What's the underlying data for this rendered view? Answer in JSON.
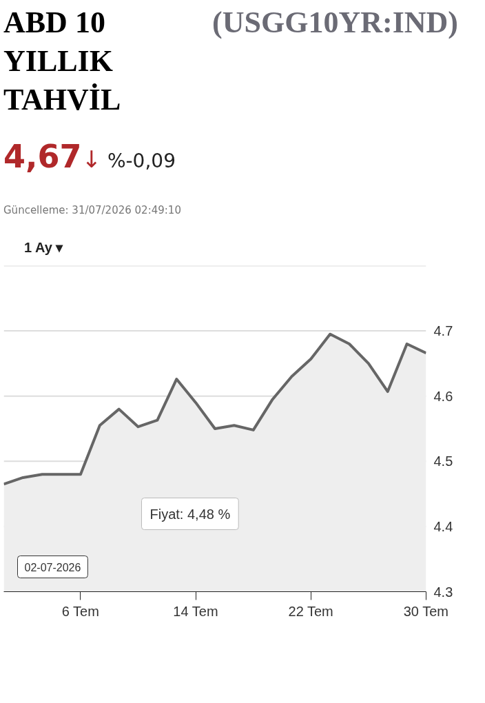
{
  "chart_data": {
    "type": "area",
    "title": "ABD 10 YILLIK TAHVİL",
    "subtitle": "(USGG10YR:IND)",
    "annotations": [
      "4,67",
      "↓",
      "%-0,09",
      "Güncelleme: 31/07/2026 02:49:10",
      "1 Ay ▾",
      "Fiyat: 4,48 %",
      "02-07-2026"
    ],
    "categories": [
      null,
      null,
      null,
      null,
      "6 Tem",
      null,
      null,
      null,
      null,
      null,
      "14 Tem",
      null,
      null,
      null,
      null,
      null,
      "22 Tem",
      null,
      null,
      null,
      null,
      null,
      "30 Tem"
    ],
    "series": [
      {
        "color": "#666666",
        "values": [
          4.465,
          4.475,
          4.48,
          4.48,
          4.48,
          4.555,
          4.58,
          4.553,
          4.563,
          4.626,
          4.59,
          4.55,
          4.555,
          4.548,
          4.595,
          4.63,
          4.657,
          4.695,
          4.68,
          4.65,
          4.607,
          4.68,
          4.666
        ]
      }
    ],
    "ylim": [
      4.3,
      4.8
    ],
    "yticks": [
      4.3,
      4.4,
      4.5,
      4.6,
      4.7,
      {
        "value": 4.8,
        "label": null
      }
    ],
    "grid": "y"
  }
}
